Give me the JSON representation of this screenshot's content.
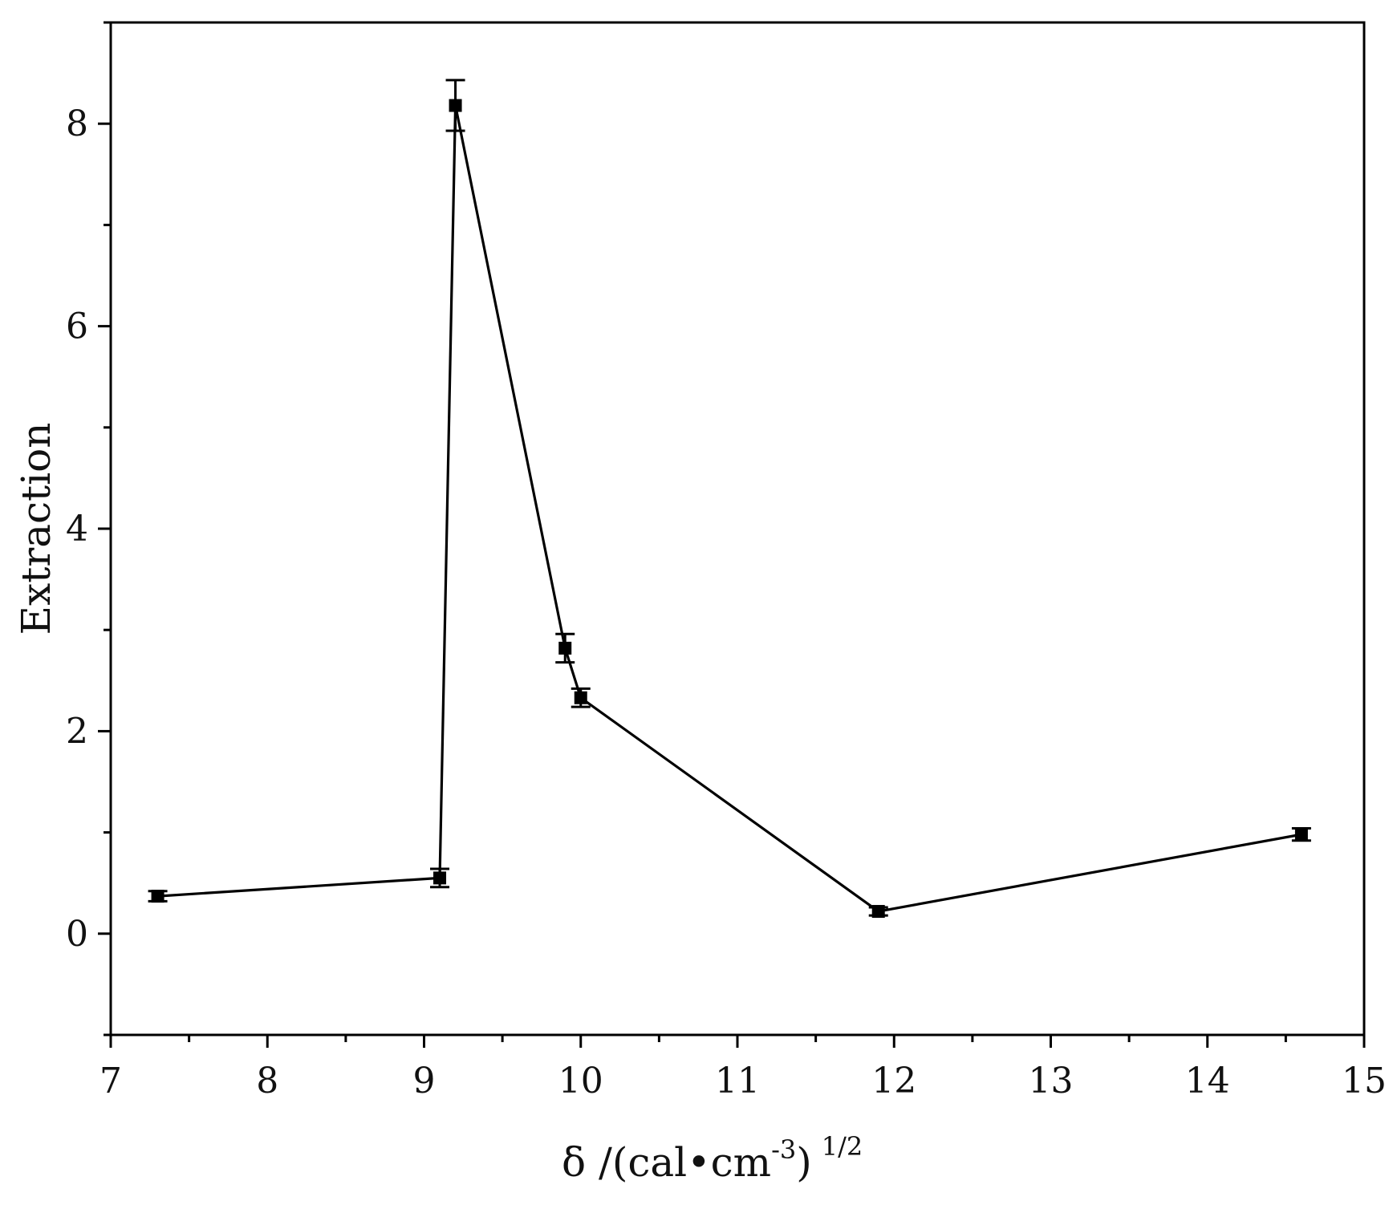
{
  "chart_data": {
    "type": "line",
    "title": "",
    "xlabel": "δ /(cal•cm⁻³)¹ᐟ²",
    "xlabel_parts": {
      "main": "δ /(cal•cm",
      "exp1": "-3",
      "close": ")",
      "exp2": "1/2"
    },
    "ylabel": "Extraction",
    "xlim": [
      7,
      15
    ],
    "ylim": [
      -1,
      9
    ],
    "xticks": [
      7,
      8,
      9,
      10,
      11,
      12,
      13,
      14,
      15
    ],
    "yticks": [
      0,
      2,
      4,
      6,
      8
    ],
    "grid": false,
    "legend": "none",
    "line_color": "#000000",
    "series": [
      {
        "x": [
          7.3,
          9.1,
          9.2,
          9.9,
          10.0,
          11.9,
          14.6
        ],
        "y": [
          0.37,
          0.55,
          8.18,
          2.82,
          2.33,
          0.22,
          0.98
        ],
        "error": [
          0.05,
          0.09,
          0.25,
          0.14,
          0.09,
          0.04,
          0.06
        ]
      }
    ]
  }
}
